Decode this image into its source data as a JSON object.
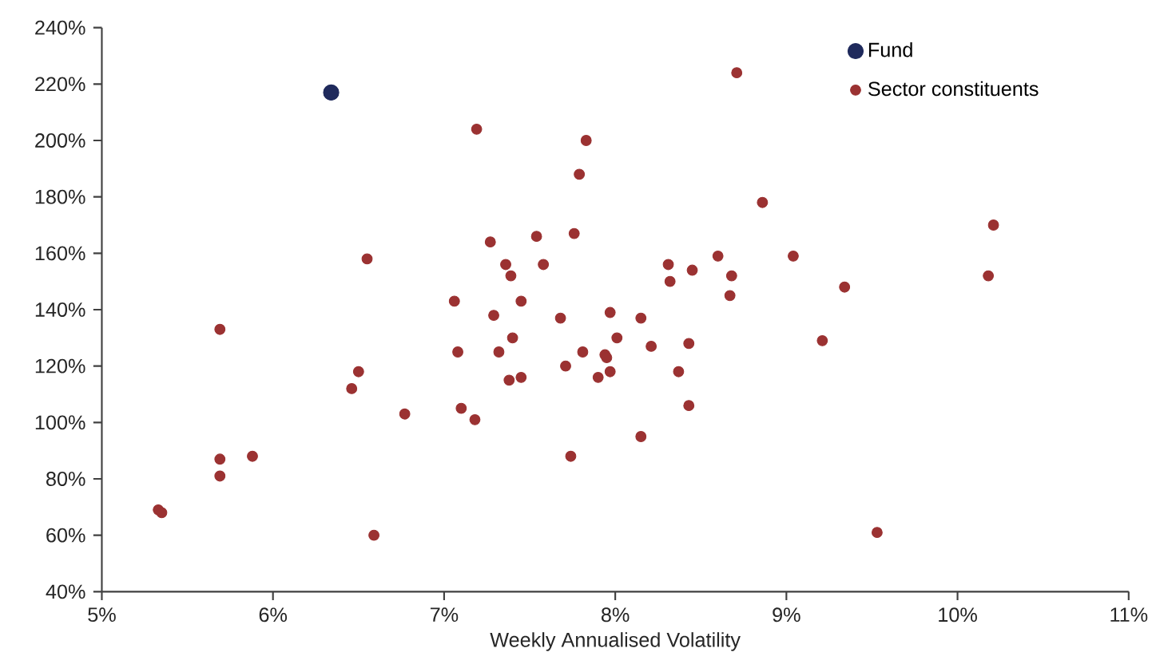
{
  "chart_data": {
    "type": "scatter",
    "xlabel": "Weekly Annualised Volatility",
    "xlim": [
      5,
      11
    ],
    "ylim": [
      40,
      240
    ],
    "xticks": [
      {
        "value": 5,
        "label": "5%"
      },
      {
        "value": 6,
        "label": "6%"
      },
      {
        "value": 7,
        "label": "7%"
      },
      {
        "value": 8,
        "label": "8%"
      },
      {
        "value": 9,
        "label": "9%"
      },
      {
        "value": 10,
        "label": "10%"
      },
      {
        "value": 11,
        "label": "11%"
      }
    ],
    "yticks": [
      {
        "value": 40,
        "label": "40%"
      },
      {
        "value": 60,
        "label": "60%"
      },
      {
        "value": 80,
        "label": "80%"
      },
      {
        "value": 100,
        "label": "100%"
      },
      {
        "value": 120,
        "label": "120%"
      },
      {
        "value": 140,
        "label": "140%"
      },
      {
        "value": 160,
        "label": "160%"
      },
      {
        "value": 180,
        "label": "180%"
      },
      {
        "value": 200,
        "label": "200%"
      },
      {
        "value": 220,
        "label": "220%"
      },
      {
        "value": 240,
        "label": "240%"
      }
    ],
    "grid": false,
    "legend": "top right",
    "series": [
      {
        "name": "Fund",
        "color": "#1f2a5c",
        "x": [
          6.34
        ],
        "values": [
          217
        ]
      },
      {
        "name": "Sector constituents",
        "color": "#9b3232",
        "x": [
          5.33,
          5.35,
          5.69,
          5.69,
          5.69,
          5.88,
          6.46,
          6.5,
          6.55,
          6.59,
          6.77,
          7.06,
          7.08,
          7.1,
          7.18,
          7.19,
          7.27,
          7.29,
          7.32,
          7.36,
          7.38,
          7.39,
          7.4,
          7.45,
          7.45,
          7.54,
          7.58,
          7.68,
          7.71,
          7.74,
          7.76,
          7.79,
          7.81,
          7.83,
          7.9,
          7.94,
          7.95,
          7.97,
          7.97,
          8.01,
          8.15,
          8.15,
          8.21,
          8.31,
          8.32,
          8.37,
          8.43,
          8.43,
          8.45,
          8.6,
          8.67,
          8.68,
          8.71,
          8.86,
          9.04,
          9.21,
          9.34,
          9.53,
          10.18,
          10.21
        ],
        "values": [
          69,
          68,
          133,
          87,
          81,
          88,
          112,
          118,
          158,
          60,
          103,
          143,
          125,
          105,
          101,
          204,
          164,
          138,
          125,
          156,
          115,
          152,
          130,
          143,
          116,
          166,
          156,
          137,
          120,
          88,
          167,
          188,
          125,
          200,
          116,
          124,
          123,
          139,
          118,
          130,
          137,
          95,
          127,
          156,
          150,
          118,
          128,
          106,
          154,
          159,
          145,
          152,
          224,
          178,
          159,
          129,
          148,
          61,
          152,
          170
        ]
      }
    ]
  }
}
